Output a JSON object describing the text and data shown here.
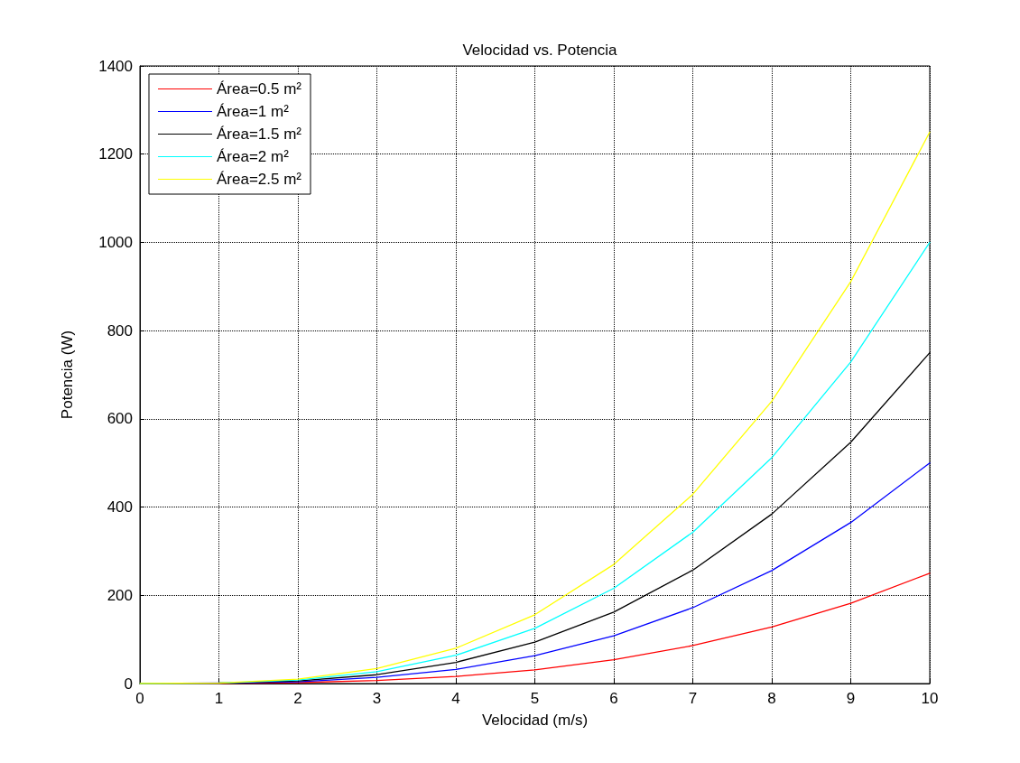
{
  "chart_data": {
    "type": "line",
    "title": "Velocidad vs. Potencia",
    "xlabel": "Velocidad (m/s)",
    "ylabel": "Potencia (W)",
    "x": [
      0,
      1,
      2,
      3,
      4,
      5,
      6,
      7,
      8,
      9,
      10
    ],
    "series": [
      {
        "name": "Área=0.5 m²",
        "color": "#ff0000",
        "values": [
          0,
          0,
          2,
          7,
          16,
          31,
          54,
          86,
          128,
          182,
          250
        ]
      },
      {
        "name": "Área=1 m²",
        "color": "#0000ff",
        "values": [
          0,
          1,
          4,
          14,
          32,
          63,
          108,
          172,
          256,
          365,
          500
        ]
      },
      {
        "name": "Área=1.5 m²",
        "color": "#000000",
        "values": [
          0,
          1,
          6,
          20,
          48,
          94,
          162,
          257,
          384,
          547,
          750
        ]
      },
      {
        "name": "Área=2 m²",
        "color": "#00ffff",
        "values": [
          0,
          1,
          8,
          27,
          64,
          125,
          216,
          343,
          512,
          729,
          1000
        ]
      },
      {
        "name": "Área=2.5 m²",
        "color": "#ffff00",
        "values": [
          0,
          1,
          10,
          34,
          80,
          156,
          270,
          429,
          640,
          911,
          1250
        ]
      }
    ],
    "xlim": [
      0,
      10
    ],
    "xticks": [
      0,
      1,
      2,
      3,
      4,
      5,
      6,
      7,
      8,
      9,
      10
    ],
    "ylim": [
      0,
      1400
    ],
    "yticks": [
      0,
      200,
      400,
      600,
      800,
      1000,
      1200,
      1400
    ],
    "grid": true,
    "legend": "top left",
    "marker": "none",
    "line_style": "solid"
  }
}
